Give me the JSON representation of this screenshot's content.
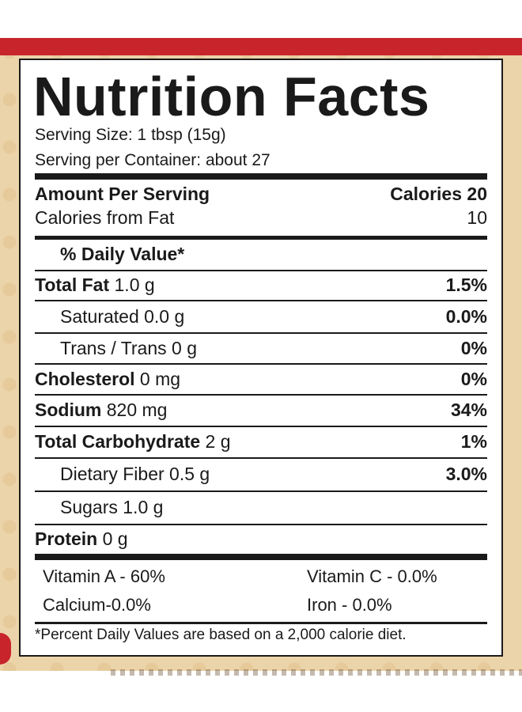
{
  "label": {
    "title": "Nutrition Facts",
    "serving_size": "Serving Size: 1 tbsp (15g)",
    "servings_per_container": "Serving per Container: about 27",
    "amount_per_serving": "Amount Per Serving",
    "calories": "Calories 20",
    "calories_from_fat_label": "Calories from Fat",
    "calories_from_fat_value": "10",
    "daily_value_header": "% Daily Value*",
    "nutrients": [
      {
        "name": "Total Fat",
        "amount": " 1.0 g",
        "dv": "1.5%"
      },
      {
        "name": "Saturated 0.0 g",
        "amount": "",
        "dv": "0.0%"
      },
      {
        "name": "Trans / Trans 0 g",
        "amount": "",
        "dv": "0%"
      },
      {
        "name": "Cholesterol",
        "amount": " 0 mg",
        "dv": "0%"
      },
      {
        "name": "Sodium",
        "amount": " 820 mg",
        "dv": "34%"
      },
      {
        "name": "Total Carbohydrate",
        "amount": " 2 g",
        "dv": "1%"
      },
      {
        "name": "Dietary Fiber  0.5 g",
        "amount": "",
        "dv": "3.0%"
      },
      {
        "name": "Sugars 1.0 g",
        "amount": "",
        "dv": ""
      },
      {
        "name": "Protein",
        "amount": " 0 g",
        "dv": ""
      }
    ],
    "vitamin_a": "Vitamin A - 60%",
    "vitamin_c": "Vitamin C - 0.0%",
    "calcium": "Calcium-0.0%",
    "iron": "Iron - 0.0%",
    "footnote": "*Percent Daily Values are based on a 2,000 calorie diet."
  },
  "colors": {
    "accent_red": "#c8242c",
    "package_tan": "#ecd4aa",
    "ink": "#1a1a1a"
  }
}
